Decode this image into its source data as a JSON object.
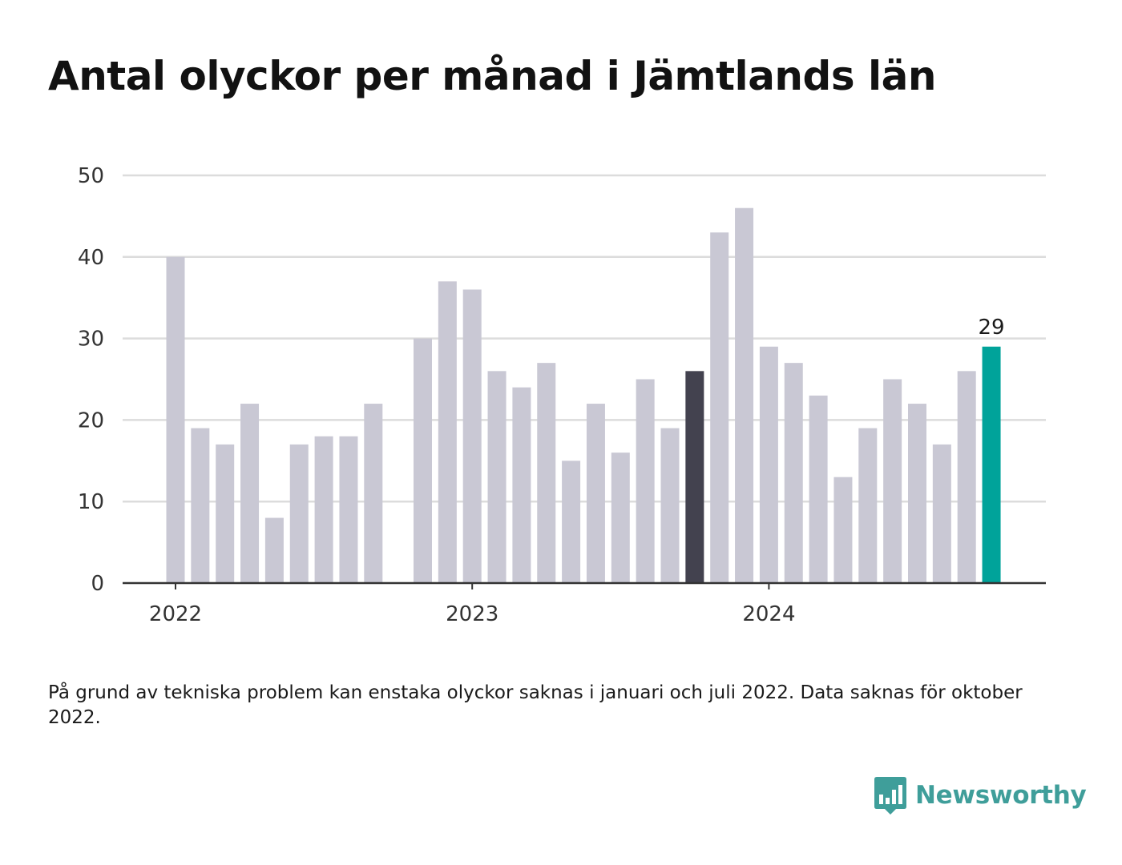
{
  "title": "Antal olyckor per månad i Jämtlands län",
  "note": "På grund av tekniska problem kan enstaka olyckor saknas i januari och juli 2022. Data saknas för oktober 2022.",
  "brand": {
    "name": "Newsworthy",
    "color": "#3f9e9a",
    "icon": "bar-chart-speech-bubble-icon"
  },
  "colors": {
    "bar": "#c9c8d4",
    "bar_highlight_dark": "#43424f",
    "bar_highlight_latest": "#00a39a",
    "grid": "#dcdcdc",
    "axis": "#333333"
  },
  "chart_data": {
    "type": "bar",
    "x": [
      "2022-01",
      "2022-02",
      "2022-03",
      "2022-04",
      "2022-05",
      "2022-06",
      "2022-07",
      "2022-08",
      "2022-09",
      "2022-10",
      "2022-11",
      "2022-12",
      "2023-01",
      "2023-02",
      "2023-03",
      "2023-04",
      "2023-05",
      "2023-06",
      "2023-07",
      "2023-08",
      "2023-09",
      "2023-10",
      "2023-11",
      "2023-12",
      "2024-01",
      "2024-02",
      "2024-03",
      "2024-04",
      "2024-05",
      "2024-06",
      "2024-07",
      "2024-08",
      "2024-09",
      "2024-10"
    ],
    "values": [
      40,
      19,
      17,
      22,
      8,
      17,
      18,
      18,
      22,
      null,
      30,
      37,
      36,
      26,
      24,
      27,
      15,
      22,
      16,
      25,
      19,
      26,
      43,
      46,
      29,
      27,
      23,
      13,
      19,
      25,
      22,
      17,
      26,
      29
    ],
    "highlight_dark_index": 21,
    "highlight_latest_index": 33,
    "value_label": "29",
    "xtick_labels": [
      "2022",
      "2023",
      "2024"
    ],
    "xtick_positions": [
      "2022-01",
      "2023-01",
      "2024-01"
    ],
    "yticks": [
      0,
      10,
      20,
      30,
      40,
      50
    ],
    "ylim": [
      0,
      50
    ],
    "grid": true
  }
}
